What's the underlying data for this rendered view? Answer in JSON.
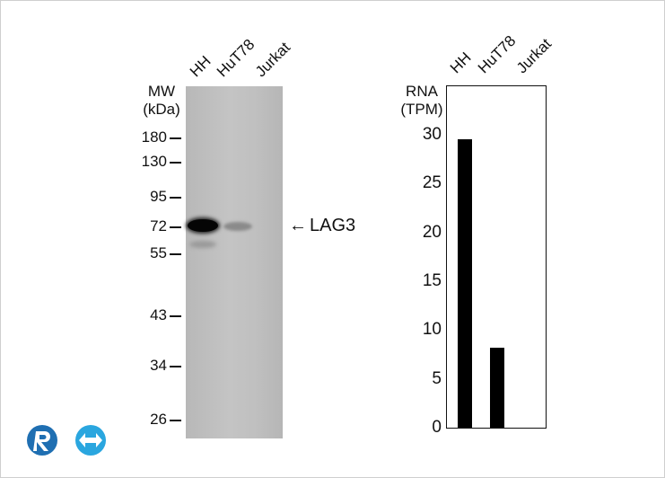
{
  "blot": {
    "lanes": [
      "HH",
      "HuT78",
      "Jurkat"
    ],
    "mw_title_line1": "MW",
    "mw_title_line2": "(kDa)",
    "markers": [
      "180",
      "130",
      "95",
      "72",
      "55",
      "43",
      "34",
      "26"
    ],
    "target_label": "LAG3",
    "arrow_glyph": "←"
  },
  "chart_data": {
    "type": "bar",
    "categories": [
      "HH",
      "HuT78",
      "Jurkat"
    ],
    "values": [
      29.5,
      8.2,
      0
    ],
    "title": "",
    "xlabel": "",
    "ylabel_line1": "RNA",
    "ylabel_line2": "(TPM)",
    "ylim": [
      0,
      30
    ],
    "yticks": [
      "0",
      "5",
      "10",
      "15",
      "20",
      "25",
      "30"
    ],
    "bar_color": "#000000",
    "grid": false
  },
  "logo": {
    "colors": [
      "#1f6fb2",
      "#2aa6df"
    ],
    "icon": "brand-logo-icon"
  }
}
